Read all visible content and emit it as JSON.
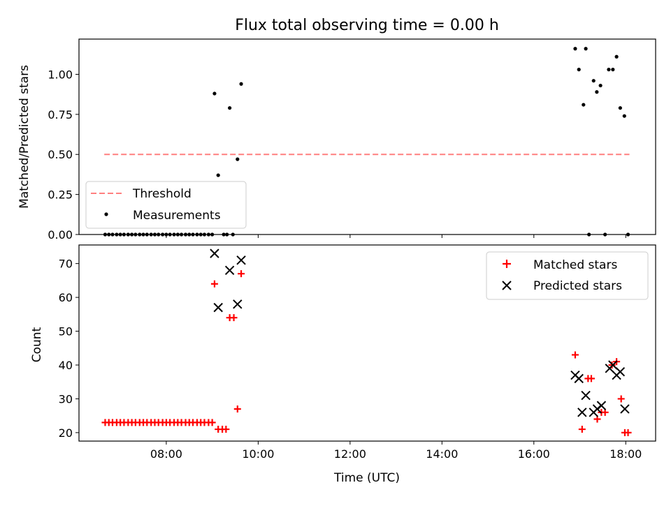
{
  "title": "Flux total observing time = 0.00 h",
  "chart_data": [
    {
      "type": "scatter",
      "ylabel": "Matched/Predicted stars",
      "xlabel": "",
      "x_unit": "hours UTC",
      "xlim": [
        6.1,
        18.65
      ],
      "ylim": [
        0.0,
        1.22
      ],
      "y_ticks": [
        0.0,
        0.25,
        0.5,
        0.75,
        1.0
      ],
      "y_tick_labels": [
        "0.00",
        "0.25",
        "0.50",
        "0.75",
        "1.00"
      ],
      "x_ticks": [
        8,
        10,
        12,
        14,
        16,
        18
      ],
      "grid": false,
      "legend_position": "lower-left",
      "series": [
        {
          "name": "Threshold",
          "kind": "line",
          "style": "dashed",
          "color": "#ff7f7f",
          "x": [
            6.65,
            18.08
          ],
          "y": [
            0.5,
            0.5
          ]
        },
        {
          "name": "Measurements",
          "kind": "points",
          "marker": "dot",
          "color": "#000000",
          "x": [
            6.67,
            6.75,
            6.83,
            6.92,
            7.0,
            7.08,
            7.17,
            7.25,
            7.33,
            7.42,
            7.5,
            7.58,
            7.67,
            7.75,
            7.83,
            7.92,
            8.0,
            8.08,
            8.17,
            8.25,
            8.33,
            8.42,
            8.5,
            8.58,
            8.67,
            8.75,
            8.83,
            8.92,
            9.0,
            9.05,
            9.13,
            9.25,
            9.32,
            9.38,
            9.45,
            9.55,
            9.63,
            16.9,
            16.98,
            17.08,
            17.13,
            17.2,
            17.3,
            17.37,
            17.45,
            17.55,
            17.63,
            17.72,
            17.8,
            17.88,
            17.97,
            18.05
          ],
          "y": [
            0.0,
            0.0,
            0.0,
            0.0,
            0.0,
            0.0,
            0.0,
            0.0,
            0.0,
            0.0,
            0.0,
            0.0,
            0.0,
            0.0,
            0.0,
            0.0,
            0.0,
            0.0,
            0.0,
            0.0,
            0.0,
            0.0,
            0.0,
            0.0,
            0.0,
            0.0,
            0.0,
            0.0,
            0.0,
            0.88,
            0.37,
            0.0,
            0.0,
            0.79,
            0.0,
            0.47,
            0.94,
            1.16,
            1.03,
            0.81,
            1.16,
            0.0,
            0.96,
            0.89,
            0.93,
            0.0,
            1.03,
            1.03,
            1.11,
            0.79,
            0.74,
            0.0
          ]
        }
      ]
    },
    {
      "type": "scatter",
      "ylabel": "Count",
      "xlabel": "Time (UTC)",
      "x_unit": "hours UTC",
      "xlim": [
        6.1,
        18.65
      ],
      "ylim": [
        17.5,
        75.5
      ],
      "y_ticks": [
        20,
        30,
        40,
        50,
        60,
        70
      ],
      "y_tick_labels": [
        "20",
        "30",
        "40",
        "50",
        "60",
        "70"
      ],
      "x_ticks": [
        8,
        10,
        12,
        14,
        16,
        18
      ],
      "x_tick_labels": [
        "08:00",
        "10:00",
        "12:00",
        "14:00",
        "16:00",
        "18:00"
      ],
      "grid": false,
      "legend_position": "upper-right",
      "series": [
        {
          "name": "Matched stars",
          "kind": "points",
          "marker": "plus",
          "color": "#ff0000",
          "x": [
            6.67,
            6.75,
            6.83,
            6.92,
            7.0,
            7.08,
            7.17,
            7.25,
            7.33,
            7.42,
            7.5,
            7.58,
            7.67,
            7.75,
            7.83,
            7.92,
            8.0,
            8.08,
            8.17,
            8.25,
            8.33,
            8.42,
            8.5,
            8.58,
            8.67,
            8.75,
            8.83,
            8.92,
            9.0,
            9.05,
            9.13,
            9.22,
            9.3,
            9.38,
            9.47,
            9.55,
            9.63,
            16.9,
            17.05,
            17.18,
            17.25,
            17.38,
            17.47,
            17.55,
            17.7,
            17.8,
            17.9,
            17.98,
            18.05
          ],
          "y": [
            23,
            23,
            23,
            23,
            23,
            23,
            23,
            23,
            23,
            23,
            23,
            23,
            23,
            23,
            23,
            23,
            23,
            23,
            23,
            23,
            23,
            23,
            23,
            23,
            23,
            23,
            23,
            23,
            23,
            64,
            21,
            21,
            21,
            54,
            54,
            27,
            67,
            43,
            21,
            36,
            36,
            24,
            26,
            26,
            40,
            41,
            30,
            20,
            20
          ]
        },
        {
          "name": "Predicted stars",
          "kind": "points",
          "marker": "x",
          "color": "#000000",
          "x": [
            9.05,
            9.13,
            9.38,
            9.55,
            9.63,
            16.9,
            16.98,
            17.05,
            17.13,
            17.3,
            17.38,
            17.47,
            17.65,
            17.72,
            17.8,
            17.88,
            17.98
          ],
          "y": [
            73,
            57,
            68,
            58,
            71,
            37,
            36,
            26,
            31,
            26,
            27,
            28,
            39,
            40,
            37,
            38,
            27
          ]
        }
      ]
    }
  ]
}
